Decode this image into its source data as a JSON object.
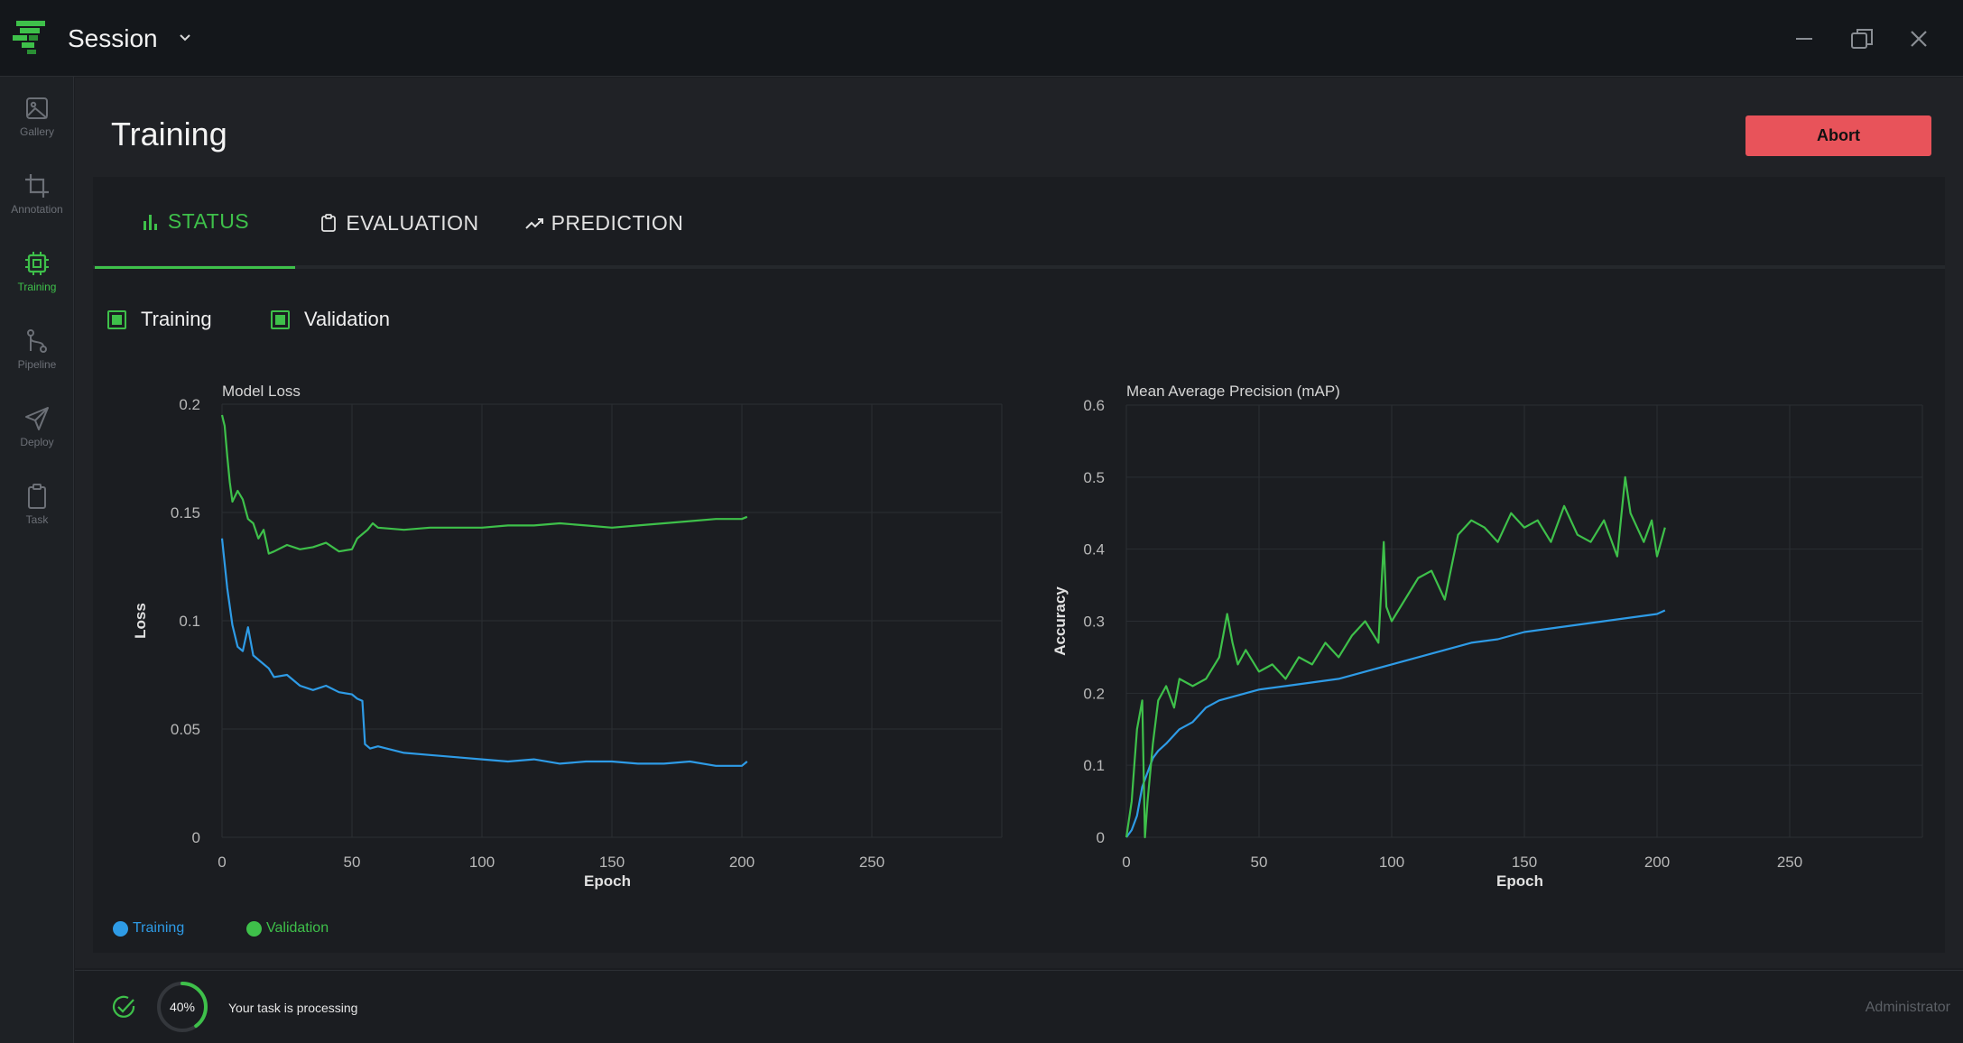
{
  "window": {
    "title": "Session",
    "controls": [
      "minimize-icon",
      "restore-icon",
      "close-icon"
    ]
  },
  "sidebar": {
    "items": [
      {
        "label": "Gallery",
        "icon": "image-icon",
        "active": false
      },
      {
        "label": "Annotation",
        "icon": "crop-icon",
        "active": false
      },
      {
        "label": "Training",
        "icon": "cpu-chip-icon",
        "active": true
      },
      {
        "label": "Pipeline",
        "icon": "git-branch-icon",
        "active": false
      },
      {
        "label": "Deploy",
        "icon": "send-icon",
        "active": false
      },
      {
        "label": "Task",
        "icon": "clipboard-icon",
        "active": false
      }
    ]
  },
  "header": {
    "title": "Training",
    "abort_label": "Abort"
  },
  "tabs": [
    {
      "label": "STATUS",
      "icon": "bar-chart-icon",
      "active": true
    },
    {
      "label": "EVALUATION",
      "icon": "clipboard-icon",
      "active": false
    },
    {
      "label": "PREDICTION",
      "icon": "trending-up-icon",
      "active": false
    }
  ],
  "toggles": {
    "training_label": "Training",
    "validation_label": "Validation",
    "training_checked": true,
    "validation_checked": true
  },
  "colors": {
    "accent": "#3ec04a",
    "training": "#2e9be6",
    "validation": "#3ec04a",
    "abort": "#e8535a"
  },
  "chart_data": [
    {
      "type": "line",
      "title": "Model Loss",
      "xlabel": "Epoch",
      "ylabel": "Loss",
      "xlim": [
        0,
        300
      ],
      "ylim": [
        0,
        0.2
      ],
      "xticks": [
        0,
        50,
        100,
        150,
        200,
        250
      ],
      "yticks": [
        0,
        0.05,
        0.1,
        0.15,
        0.2
      ],
      "ytick_labels": [
        "0",
        "0.05",
        "0.1",
        "0.15",
        "0.2"
      ],
      "grid": true,
      "series": [
        {
          "name": "Training",
          "color": "#2e9be6",
          "x": [
            0,
            2,
            4,
            6,
            8,
            10,
            12,
            15,
            18,
            20,
            25,
            30,
            35,
            40,
            45,
            50,
            52,
            54,
            55,
            57,
            60,
            70,
            80,
            90,
            100,
            110,
            120,
            130,
            140,
            150,
            160,
            170,
            180,
            190,
            200,
            202
          ],
          "y": [
            0.138,
            0.115,
            0.098,
            0.088,
            0.086,
            0.097,
            0.084,
            0.081,
            0.078,
            0.074,
            0.075,
            0.07,
            0.068,
            0.07,
            0.067,
            0.066,
            0.064,
            0.063,
            0.043,
            0.041,
            0.042,
            0.039,
            0.038,
            0.037,
            0.036,
            0.035,
            0.036,
            0.034,
            0.035,
            0.035,
            0.034,
            0.034,
            0.035,
            0.033,
            0.033,
            0.035
          ]
        },
        {
          "name": "Validation",
          "color": "#3ec04a",
          "x": [
            0,
            1,
            2,
            3,
            4,
            6,
            8,
            10,
            12,
            14,
            16,
            18,
            20,
            25,
            30,
            35,
            40,
            45,
            50,
            52,
            54,
            56,
            58,
            60,
            70,
            80,
            90,
            100,
            110,
            120,
            130,
            140,
            150,
            160,
            170,
            180,
            190,
            200,
            202
          ],
          "y": [
            0.195,
            0.19,
            0.176,
            0.164,
            0.155,
            0.16,
            0.156,
            0.147,
            0.145,
            0.138,
            0.142,
            0.131,
            0.132,
            0.135,
            0.133,
            0.134,
            0.136,
            0.132,
            0.133,
            0.138,
            0.14,
            0.142,
            0.145,
            0.143,
            0.142,
            0.143,
            0.143,
            0.143,
            0.144,
            0.144,
            0.145,
            0.144,
            0.143,
            0.144,
            0.145,
            0.146,
            0.147,
            0.147,
            0.148
          ]
        }
      ]
    },
    {
      "type": "line",
      "title": "Mean Average Precision (mAP)",
      "xlabel": "Epoch",
      "ylabel": "Accuracy",
      "xlim": [
        0,
        300
      ],
      "ylim": [
        0,
        0.6
      ],
      "xticks": [
        0,
        50,
        100,
        150,
        200,
        250
      ],
      "yticks": [
        0,
        0.1,
        0.2,
        0.3,
        0.4,
        0.5,
        0.6
      ],
      "ytick_labels": [
        "0",
        "0.1",
        "0.2",
        "0.3",
        "0.4",
        "0.5",
        "0.6"
      ],
      "grid": true,
      "series": [
        {
          "name": "Training",
          "color": "#2e9be6",
          "x": [
            0,
            2,
            4,
            6,
            8,
            10,
            12,
            15,
            20,
            25,
            30,
            35,
            40,
            45,
            50,
            60,
            70,
            80,
            90,
            100,
            110,
            120,
            130,
            140,
            150,
            160,
            170,
            180,
            190,
            200,
            203
          ],
          "y": [
            0.0,
            0.01,
            0.03,
            0.07,
            0.09,
            0.11,
            0.12,
            0.13,
            0.15,
            0.16,
            0.18,
            0.19,
            0.195,
            0.2,
            0.205,
            0.21,
            0.215,
            0.22,
            0.23,
            0.24,
            0.25,
            0.26,
            0.27,
            0.275,
            0.285,
            0.29,
            0.295,
            0.3,
            0.305,
            0.31,
            0.315
          ]
        },
        {
          "name": "Validation",
          "color": "#3ec04a",
          "x": [
            0,
            2,
            3,
            4,
            5,
            6,
            7,
            8,
            10,
            12,
            15,
            18,
            20,
            25,
            30,
            35,
            38,
            40,
            42,
            45,
            50,
            55,
            60,
            65,
            70,
            75,
            80,
            85,
            90,
            95,
            97,
            98,
            100,
            105,
            110,
            115,
            120,
            125,
            130,
            135,
            140,
            145,
            150,
            155,
            160,
            165,
            170,
            175,
            180,
            185,
            188,
            190,
            195,
            198,
            200,
            203
          ],
          "y": [
            0.0,
            0.05,
            0.1,
            0.15,
            0.17,
            0.19,
            0.0,
            0.05,
            0.13,
            0.19,
            0.21,
            0.18,
            0.22,
            0.21,
            0.22,
            0.25,
            0.31,
            0.27,
            0.24,
            0.26,
            0.23,
            0.24,
            0.22,
            0.25,
            0.24,
            0.27,
            0.25,
            0.28,
            0.3,
            0.27,
            0.41,
            0.32,
            0.3,
            0.33,
            0.36,
            0.37,
            0.33,
            0.42,
            0.44,
            0.43,
            0.41,
            0.45,
            0.43,
            0.44,
            0.41,
            0.46,
            0.42,
            0.41,
            0.44,
            0.39,
            0.5,
            0.45,
            0.41,
            0.44,
            0.39,
            0.43
          ]
        }
      ]
    }
  ],
  "bottom_legend": {
    "training_label": "Training",
    "validation_label": "Validation"
  },
  "status": {
    "progress_percent": 40,
    "progress_label": "40%",
    "message": "Your task is processing",
    "user": "Administrator"
  }
}
